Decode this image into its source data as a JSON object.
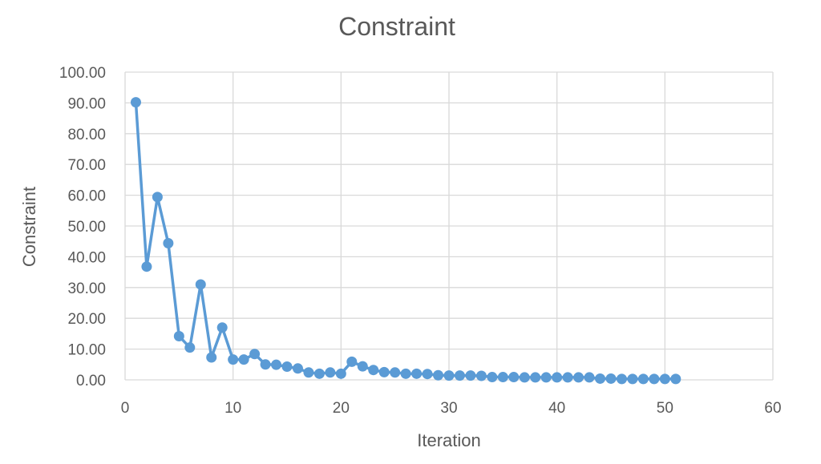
{
  "chart_data": {
    "type": "line",
    "title": "Constraint",
    "xlabel": "Iteration",
    "ylabel": "Constraint",
    "xlim": [
      0,
      60
    ],
    "ylim": [
      0,
      100
    ],
    "x_ticks": [
      "0",
      "10",
      "20",
      "30",
      "40",
      "50",
      "60"
    ],
    "y_ticks": [
      "0.00",
      "10.00",
      "20.00",
      "30.00",
      "40.00",
      "50.00",
      "60.00",
      "70.00",
      "80.00",
      "90.00",
      "100.00"
    ],
    "grid": true,
    "legend": "none",
    "color": "#5b9bd5",
    "series": [
      {
        "x": [
          1,
          2,
          3,
          4,
          5,
          6,
          7,
          8,
          9,
          10,
          11,
          12,
          13,
          14,
          15,
          16,
          17,
          18,
          19,
          20,
          21,
          22,
          23,
          24,
          25,
          26,
          27,
          28,
          29,
          30,
          31,
          32,
          33,
          34,
          35,
          36,
          37,
          38,
          39,
          40,
          41,
          42,
          43,
          44,
          45,
          46,
          47,
          48,
          49,
          50,
          51
        ],
        "values": [
          90.2,
          36.8,
          59.4,
          44.4,
          14.2,
          10.5,
          31.0,
          7.3,
          17.0,
          6.6,
          6.6,
          8.4,
          5.0,
          4.9,
          4.3,
          3.7,
          2.4,
          2.0,
          2.4,
          2.0,
          5.9,
          4.4,
          3.2,
          2.5,
          2.4,
          2.0,
          2.0,
          1.9,
          1.5,
          1.4,
          1.4,
          1.4,
          1.3,
          0.9,
          0.9,
          0.9,
          0.8,
          0.8,
          0.8,
          0.8,
          0.8,
          0.8,
          0.8,
          0.4,
          0.4,
          0.3,
          0.3,
          0.3,
          0.3,
          0.3,
          0.3
        ]
      }
    ]
  }
}
